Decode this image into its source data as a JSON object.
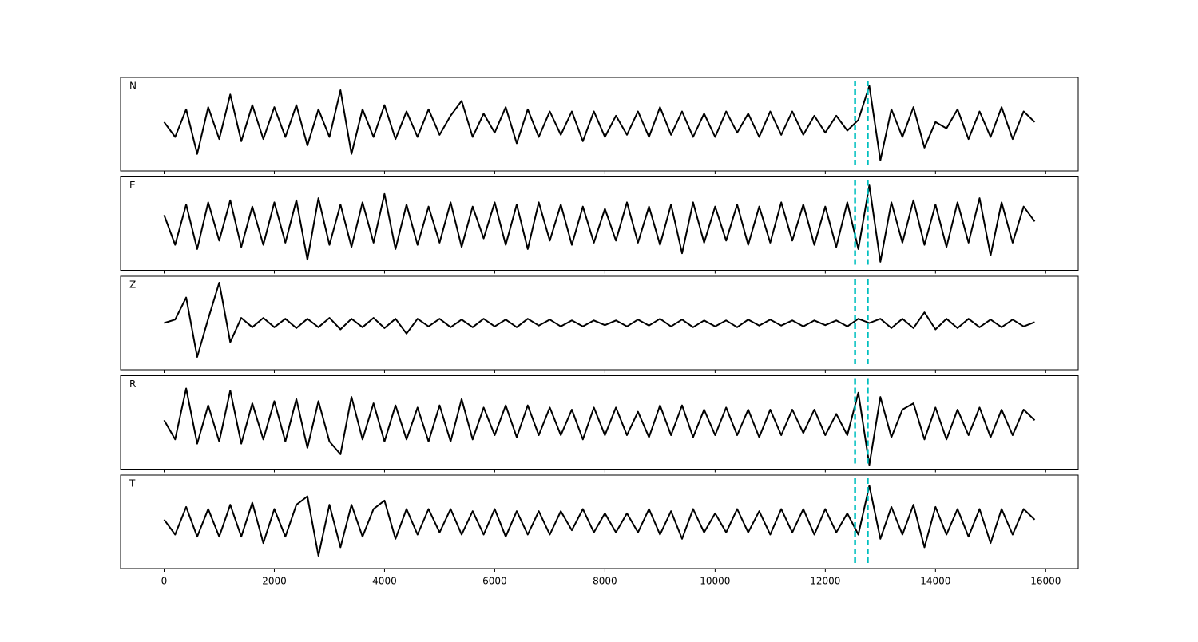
{
  "chart_data": {
    "type": "line",
    "x": [
      0,
      200,
      400,
      600,
      800,
      1000,
      1200,
      1400,
      1600,
      1800,
      2000,
      2200,
      2400,
      2600,
      2800,
      3000,
      3200,
      3400,
      3600,
      3800,
      4000,
      4200,
      4400,
      4600,
      4800,
      5000,
      5200,
      5400,
      5600,
      5800,
      6000,
      6200,
      6400,
      6600,
      6800,
      7000,
      7200,
      7400,
      7600,
      7800,
      8000,
      8200,
      8400,
      8600,
      8800,
      9000,
      9200,
      9400,
      9600,
      9800,
      10000,
      10200,
      10400,
      10600,
      10800,
      11000,
      11200,
      11400,
      11600,
      11800,
      12000,
      12200,
      12400,
      12600,
      12800,
      13000,
      13200,
      13400,
      13600,
      13800,
      14000,
      14200,
      14400,
      14600,
      14800,
      15000,
      15200,
      15400,
      15600,
      15800
    ],
    "xlim": [
      -790,
      16590
    ],
    "xticks": [
      0,
      2000,
      4000,
      6000,
      8000,
      10000,
      12000,
      14000,
      16000
    ],
    "ylim": [
      -1.1,
      1.1
    ],
    "series": [
      {
        "name": "N",
        "color": "#000000",
        "values": [
          0.05,
          -0.3,
          0.35,
          -0.7,
          0.4,
          -0.35,
          0.7,
          -0.4,
          0.45,
          -0.35,
          0.4,
          -0.3,
          0.45,
          -0.5,
          0.35,
          -0.3,
          0.8,
          -0.7,
          0.35,
          -0.3,
          0.45,
          -0.35,
          0.3,
          -0.3,
          0.35,
          -0.25,
          0.2,
          0.55,
          -0.3,
          0.25,
          -0.2,
          0.4,
          -0.45,
          0.35,
          -0.3,
          0.3,
          -0.25,
          0.3,
          -0.4,
          0.3,
          -0.3,
          0.2,
          -0.25,
          0.3,
          -0.3,
          0.4,
          -0.25,
          0.3,
          -0.3,
          0.25,
          -0.3,
          0.3,
          -0.2,
          0.25,
          -0.3,
          0.3,
          -0.25,
          0.3,
          -0.25,
          0.2,
          -0.2,
          0.2,
          -0.15,
          0.1,
          0.9,
          -0.85,
          0.35,
          -0.3,
          0.4,
          -0.55,
          0.05,
          -0.1,
          0.35,
          -0.35,
          0.3,
          -0.3,
          0.4,
          -0.35,
          0.3,
          0.05
        ]
      },
      {
        "name": "E",
        "color": "#000000",
        "values": [
          0.2,
          -0.5,
          0.45,
          -0.6,
          0.5,
          -0.4,
          0.55,
          -0.55,
          0.4,
          -0.5,
          0.5,
          -0.45,
          0.55,
          -0.85,
          0.6,
          -0.5,
          0.45,
          -0.55,
          0.5,
          -0.45,
          0.7,
          -0.6,
          0.45,
          -0.5,
          0.4,
          -0.45,
          0.5,
          -0.55,
          0.4,
          -0.35,
          0.5,
          -0.5,
          0.45,
          -0.6,
          0.5,
          -0.4,
          0.45,
          -0.5,
          0.4,
          -0.45,
          0.35,
          -0.4,
          0.5,
          -0.45,
          0.4,
          -0.5,
          0.45,
          -0.7,
          0.5,
          -0.45,
          0.4,
          -0.4,
          0.45,
          -0.5,
          0.4,
          -0.45,
          0.5,
          -0.4,
          0.45,
          -0.5,
          0.4,
          -0.55,
          0.5,
          -0.6,
          0.9,
          -0.9,
          0.5,
          -0.45,
          0.55,
          -0.5,
          0.45,
          -0.55,
          0.5,
          -0.45,
          0.6,
          -0.75,
          0.5,
          -0.45,
          0.4,
          0.05
        ]
      },
      {
        "name": "Z",
        "color": "#000000",
        "values": [
          0.0,
          0.08,
          0.6,
          -0.8,
          0.1,
          0.95,
          -0.45,
          0.12,
          -0.1,
          0.12,
          -0.1,
          0.1,
          -0.12,
          0.1,
          -0.1,
          0.12,
          -0.15,
          0.1,
          -0.1,
          0.12,
          -0.12,
          0.1,
          -0.25,
          0.1,
          -0.08,
          0.1,
          -0.1,
          0.08,
          -0.1,
          0.1,
          -0.08,
          0.08,
          -0.1,
          0.1,
          -0.06,
          0.08,
          -0.08,
          0.06,
          -0.08,
          0.06,
          -0.05,
          0.06,
          -0.08,
          0.08,
          -0.06,
          0.1,
          -0.08,
          0.08,
          -0.1,
          0.06,
          -0.08,
          0.06,
          -0.1,
          0.08,
          -0.06,
          0.08,
          -0.06,
          0.06,
          -0.08,
          0.06,
          -0.05,
          0.06,
          -0.08,
          0.1,
          0.0,
          0.1,
          -0.12,
          0.1,
          -0.12,
          0.25,
          -0.15,
          0.1,
          -0.12,
          0.1,
          -0.1,
          0.08,
          -0.1,
          0.08,
          -0.08,
          0.02
        ]
      },
      {
        "name": "R",
        "color": "#000000",
        "values": [
          0.05,
          -0.4,
          0.8,
          -0.5,
          0.4,
          -0.45,
          0.75,
          -0.5,
          0.45,
          -0.4,
          0.5,
          -0.45,
          0.55,
          -0.6,
          0.5,
          -0.45,
          -0.75,
          0.6,
          -0.4,
          0.45,
          -0.45,
          0.4,
          -0.4,
          0.35,
          -0.45,
          0.4,
          -0.45,
          0.55,
          -0.4,
          0.35,
          -0.3,
          0.4,
          -0.35,
          0.4,
          -0.3,
          0.35,
          -0.3,
          0.3,
          -0.4,
          0.35,
          -0.3,
          0.35,
          -0.3,
          0.25,
          -0.35,
          0.4,
          -0.3,
          0.4,
          -0.35,
          0.3,
          -0.3,
          0.35,
          -0.3,
          0.3,
          -0.35,
          0.3,
          -0.3,
          0.3,
          -0.25,
          0.3,
          -0.3,
          0.2,
          -0.3,
          0.7,
          -1.0,
          0.6,
          -0.35,
          0.3,
          0.45,
          -0.4,
          0.35,
          -0.4,
          0.3,
          -0.3,
          0.35,
          -0.35,
          0.3,
          -0.3,
          0.3,
          0.05
        ]
      },
      {
        "name": "T",
        "color": "#000000",
        "values": [
          0.05,
          -0.3,
          0.35,
          -0.35,
          0.3,
          -0.35,
          0.4,
          -0.35,
          0.45,
          -0.5,
          0.3,
          -0.35,
          0.4,
          0.6,
          -0.8,
          0.4,
          -0.6,
          0.4,
          -0.35,
          0.3,
          0.5,
          -0.4,
          0.3,
          -0.3,
          0.3,
          -0.25,
          0.3,
          -0.3,
          0.25,
          -0.3,
          0.3,
          -0.35,
          0.25,
          -0.3,
          0.25,
          -0.3,
          0.25,
          -0.2,
          0.3,
          -0.25,
          0.2,
          -0.25,
          0.2,
          -0.25,
          0.3,
          -0.3,
          0.25,
          -0.4,
          0.3,
          -0.25,
          0.2,
          -0.25,
          0.3,
          -0.25,
          0.25,
          -0.3,
          0.3,
          -0.25,
          0.3,
          -0.3,
          0.3,
          -0.25,
          0.2,
          -0.3,
          0.85,
          -0.4,
          0.35,
          -0.3,
          0.4,
          -0.6,
          0.35,
          -0.3,
          0.3,
          -0.35,
          0.3,
          -0.5,
          0.3,
          -0.3,
          0.3,
          0.05
        ]
      }
    ],
    "vlines": {
      "values": [
        12540,
        12770
      ],
      "color": "#00bfbf"
    }
  }
}
